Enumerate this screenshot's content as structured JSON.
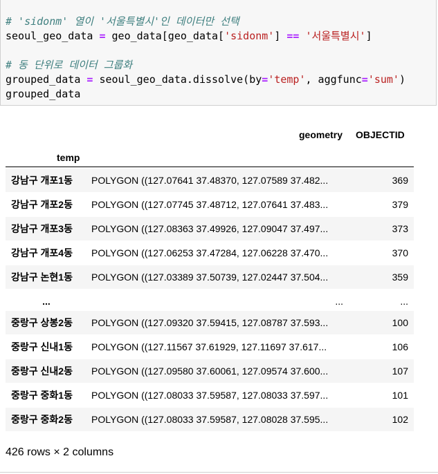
{
  "code": {
    "line1_comment": "# 'sidonm' 열이 '서울특별시'인 데이터만 선택",
    "line2": {
      "lhs": "seoul_geo_data ",
      "eq": "=",
      "mid1": " geo_data[geo_data[",
      "str1": "'sidonm'",
      "mid2": "] ",
      "eqeq": "==",
      "sp": " ",
      "str2": "'서울특별시'",
      "end": "]"
    },
    "line4_comment": "# 동 단위로 데이터 그룹화",
    "line5": {
      "lhs": "grouped_data ",
      "eq": "=",
      "mid1": " seoul_geo_data.dissolve(by",
      "eq2": "=",
      "str1": "'temp'",
      "mid2": ", aggfunc",
      "eq3": "=",
      "str2": "'sum'",
      "end": ")"
    },
    "line6": "grouped_data"
  },
  "table": {
    "columns": [
      "geometry",
      "OBJECTID"
    ],
    "index_name": "temp",
    "rows": [
      {
        "index": "강남구 개포1동",
        "geometry": "POLYGON ((127.07641 37.48370, 127.07589 37.482...",
        "objectid": "369"
      },
      {
        "index": "강남구 개포2동",
        "geometry": "POLYGON ((127.07745 37.48712, 127.07641 37.483...",
        "objectid": "379"
      },
      {
        "index": "강남구 개포3동",
        "geometry": "POLYGON ((127.08363 37.49926, 127.09047 37.497...",
        "objectid": "373"
      },
      {
        "index": "강남구 개포4동",
        "geometry": "POLYGON ((127.06253 37.47284, 127.06228 37.470...",
        "objectid": "370"
      },
      {
        "index": "강남구 논현1동",
        "geometry": "POLYGON ((127.03389 37.50739, 127.02447 37.504...",
        "objectid": "359"
      },
      {
        "index": "...",
        "geometry": "...",
        "objectid": "..."
      },
      {
        "index": "중랑구 상봉2동",
        "geometry": "POLYGON ((127.09320 37.59415, 127.08787 37.593...",
        "objectid": "100"
      },
      {
        "index": "중랑구 신내1동",
        "geometry": "POLYGON ((127.11567 37.61929, 127.11697 37.617...",
        "objectid": "106"
      },
      {
        "index": "중랑구 신내2동",
        "geometry": "POLYGON ((127.09580 37.60061, 127.09574 37.600...",
        "objectid": "107"
      },
      {
        "index": "중랑구 중화1동",
        "geometry": "POLYGON ((127.08033 37.59587, 127.08033 37.597...",
        "objectid": "101"
      },
      {
        "index": "중랑구 중화2동",
        "geometry": "POLYGON ((127.08033 37.59587, 127.08028 37.595...",
        "objectid": "102"
      }
    ],
    "summary": "426 rows × 2 columns"
  },
  "colors": {
    "comment": "#408080",
    "operator": "#aa22ff",
    "string": "#ba2121",
    "cell_bg": "#f7f7f7",
    "stripe": "#f5f5f5"
  }
}
